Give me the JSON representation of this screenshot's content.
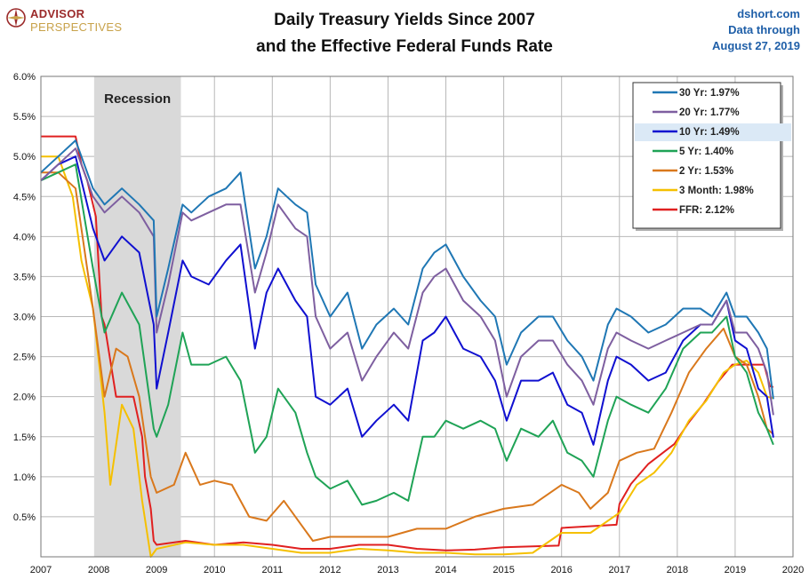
{
  "header": {
    "logo_line1": "ADVISOR",
    "logo_line2": "PERSPECTIVES",
    "title_line1": "Daily Treasury Yields Since 2007",
    "title_line2": "and the Effective Federal Funds Rate",
    "source_line1": "dshort.com",
    "source_line2": "Data through",
    "source_line3": "August 27, 2019"
  },
  "colors": {
    "grid": "#b8b8b8",
    "recession": "#d9d9d9",
    "legend_highlight": "#dbe9f6"
  },
  "chart_data": {
    "type": "line",
    "title": "Daily Treasury Yields Since 2007 and the Effective Federal Funds Rate",
    "xlabel": "",
    "ylabel": "",
    "xlim": [
      2007,
      2020
    ],
    "ylim": [
      0,
      6
    ],
    "x_ticks": [
      "2007",
      "2008",
      "2009",
      "2010",
      "2011",
      "2012",
      "2013",
      "2014",
      "2015",
      "2016",
      "2017",
      "2018",
      "2019",
      "2020"
    ],
    "y_ticks": [
      "6.0%",
      "5.5%",
      "5.0%",
      "4.5%",
      "4.0%",
      "3.5%",
      "3.0%",
      "2.5%",
      "2.0%",
      "1.5%",
      "1.0%",
      "0.5%"
    ],
    "grid": true,
    "legend_position": "top-right",
    "annotations": [
      {
        "text": "Recession",
        "start": 2007.92,
        "end": 2009.42
      }
    ],
    "series": [
      {
        "name": "30 Yr: 1.97%",
        "color": "#1f77b4",
        "highlight": false,
        "x": [
          2007.0,
          2007.3,
          2007.6,
          2007.9,
          2008.1,
          2008.4,
          2008.7,
          2008.95,
          2009.0,
          2009.2,
          2009.45,
          2009.6,
          2009.9,
          2010.2,
          2010.45,
          2010.7,
          2010.9,
          2011.1,
          2011.4,
          2011.6,
          2011.75,
          2012.0,
          2012.3,
          2012.55,
          2012.8,
          2013.1,
          2013.35,
          2013.6,
          2013.8,
          2014.0,
          2014.3,
          2014.6,
          2014.85,
          2015.05,
          2015.3,
          2015.6,
          2015.85,
          2016.1,
          2016.35,
          2016.55,
          2016.8,
          2016.95,
          2017.2,
          2017.5,
          2017.8,
          2018.1,
          2018.4,
          2018.6,
          2018.85,
          2019.0,
          2019.2,
          2019.4,
          2019.55,
          2019.66
        ],
        "y": [
          4.8,
          5.0,
          5.2,
          4.6,
          4.4,
          4.6,
          4.4,
          4.2,
          3.0,
          3.6,
          4.4,
          4.3,
          4.5,
          4.6,
          4.8,
          3.6,
          4.0,
          4.6,
          4.4,
          4.3,
          3.4,
          3.0,
          3.3,
          2.6,
          2.9,
          3.1,
          2.9,
          3.6,
          3.8,
          3.9,
          3.5,
          3.2,
          3.0,
          2.4,
          2.8,
          3.0,
          3.0,
          2.7,
          2.5,
          2.2,
          2.9,
          3.1,
          3.0,
          2.8,
          2.9,
          3.1,
          3.1,
          3.0,
          3.3,
          3.0,
          3.0,
          2.8,
          2.6,
          1.97
        ]
      },
      {
        "name": "20 Yr: 1.77%",
        "color": "#7e5fa0",
        "highlight": false,
        "x": [
          2007.0,
          2007.3,
          2007.6,
          2007.9,
          2008.1,
          2008.4,
          2008.7,
          2008.95,
          2009.0,
          2009.2,
          2009.45,
          2009.6,
          2009.9,
          2010.2,
          2010.45,
          2010.7,
          2010.9,
          2011.1,
          2011.4,
          2011.6,
          2011.75,
          2012.0,
          2012.3,
          2012.55,
          2012.8,
          2013.1,
          2013.35,
          2013.6,
          2013.8,
          2014.0,
          2014.3,
          2014.6,
          2014.85,
          2015.05,
          2015.3,
          2015.6,
          2015.85,
          2016.1,
          2016.35,
          2016.55,
          2016.8,
          2016.95,
          2017.2,
          2017.5,
          2017.8,
          2018.1,
          2018.4,
          2018.6,
          2018.85,
          2019.0,
          2019.2,
          2019.4,
          2019.55,
          2019.66
        ],
        "y": [
          4.7,
          4.9,
          5.1,
          4.5,
          4.3,
          4.5,
          4.3,
          4.0,
          2.8,
          3.4,
          4.3,
          4.2,
          4.3,
          4.4,
          4.4,
          3.3,
          3.8,
          4.4,
          4.1,
          4.0,
          3.0,
          2.6,
          2.8,
          2.2,
          2.5,
          2.8,
          2.6,
          3.3,
          3.5,
          3.6,
          3.2,
          3.0,
          2.7,
          2.0,
          2.5,
          2.7,
          2.7,
          2.4,
          2.2,
          1.9,
          2.6,
          2.8,
          2.7,
          2.6,
          2.7,
          2.8,
          2.9,
          2.9,
          3.2,
          2.8,
          2.8,
          2.6,
          2.3,
          1.77
        ]
      },
      {
        "name": "10 Yr: 1.49%",
        "color": "#1010d0",
        "highlight": true,
        "x": [
          2007.0,
          2007.3,
          2007.6,
          2007.9,
          2008.1,
          2008.4,
          2008.7,
          2008.95,
          2009.0,
          2009.2,
          2009.45,
          2009.6,
          2009.9,
          2010.2,
          2010.45,
          2010.7,
          2010.9,
          2011.1,
          2011.4,
          2011.6,
          2011.75,
          2012.0,
          2012.3,
          2012.55,
          2012.8,
          2013.1,
          2013.35,
          2013.6,
          2013.8,
          2014.0,
          2014.3,
          2014.6,
          2014.85,
          2015.05,
          2015.3,
          2015.6,
          2015.85,
          2016.1,
          2016.35,
          2016.55,
          2016.8,
          2016.95,
          2017.2,
          2017.5,
          2017.8,
          2018.1,
          2018.4,
          2018.6,
          2018.85,
          2019.0,
          2019.2,
          2019.4,
          2019.55,
          2019.66
        ],
        "y": [
          4.7,
          4.9,
          5.0,
          4.1,
          3.7,
          4.0,
          3.8,
          2.9,
          2.1,
          2.8,
          3.7,
          3.5,
          3.4,
          3.7,
          3.9,
          2.6,
          3.3,
          3.6,
          3.2,
          3.0,
          2.0,
          1.9,
          2.1,
          1.5,
          1.7,
          1.9,
          1.7,
          2.7,
          2.8,
          3.0,
          2.6,
          2.5,
          2.2,
          1.7,
          2.2,
          2.2,
          2.3,
          1.9,
          1.8,
          1.4,
          2.2,
          2.5,
          2.4,
          2.2,
          2.3,
          2.7,
          2.9,
          2.9,
          3.2,
          2.7,
          2.6,
          2.1,
          2.0,
          1.49
        ]
      },
      {
        "name": "5 Yr: 1.40%",
        "color": "#1fa356",
        "highlight": false,
        "x": [
          2007.0,
          2007.3,
          2007.6,
          2007.9,
          2008.1,
          2008.4,
          2008.7,
          2008.95,
          2009.0,
          2009.2,
          2009.45,
          2009.6,
          2009.9,
          2010.2,
          2010.45,
          2010.7,
          2010.9,
          2011.1,
          2011.4,
          2011.6,
          2011.75,
          2012.0,
          2012.3,
          2012.55,
          2012.8,
          2013.1,
          2013.35,
          2013.6,
          2013.8,
          2014.0,
          2014.3,
          2014.6,
          2014.85,
          2015.05,
          2015.3,
          2015.6,
          2015.85,
          2016.1,
          2016.35,
          2016.55,
          2016.8,
          2016.95,
          2017.2,
          2017.5,
          2017.8,
          2018.1,
          2018.4,
          2018.6,
          2018.85,
          2019.0,
          2019.2,
          2019.4,
          2019.55,
          2019.66
        ],
        "y": [
          4.7,
          4.8,
          4.9,
          3.6,
          2.8,
          3.3,
          2.9,
          1.6,
          1.5,
          1.9,
          2.8,
          2.4,
          2.4,
          2.5,
          2.2,
          1.3,
          1.5,
          2.1,
          1.8,
          1.3,
          1.0,
          0.85,
          0.95,
          0.65,
          0.7,
          0.8,
          0.7,
          1.5,
          1.5,
          1.7,
          1.6,
          1.7,
          1.6,
          1.2,
          1.6,
          1.5,
          1.7,
          1.3,
          1.2,
          1.0,
          1.7,
          2.0,
          1.9,
          1.8,
          2.1,
          2.6,
          2.8,
          2.8,
          3.0,
          2.5,
          2.3,
          1.8,
          1.6,
          1.4
        ]
      },
      {
        "name": "2 Yr: 1.53%",
        "color": "#d9781c",
        "highlight": false,
        "x": [
          2007.0,
          2007.3,
          2007.6,
          2007.9,
          2008.1,
          2008.3,
          2008.5,
          2008.7,
          2008.9,
          2009.0,
          2009.3,
          2009.5,
          2009.75,
          2010.0,
          2010.3,
          2010.6,
          2010.9,
          2011.2,
          2011.5,
          2011.7,
          2012.0,
          2012.5,
          2013.0,
          2013.5,
          2014.0,
          2014.5,
          2015.0,
          2015.5,
          2016.0,
          2016.3,
          2016.5,
          2016.8,
          2017.0,
          2017.3,
          2017.6,
          2017.9,
          2018.2,
          2018.5,
          2018.8,
          2019.0,
          2019.2,
          2019.4,
          2019.55,
          2019.66
        ],
        "y": [
          4.8,
          4.8,
          4.6,
          3.1,
          2.0,
          2.6,
          2.5,
          2.0,
          1.0,
          0.8,
          0.9,
          1.3,
          0.9,
          0.95,
          0.9,
          0.5,
          0.45,
          0.7,
          0.4,
          0.2,
          0.25,
          0.25,
          0.25,
          0.35,
          0.35,
          0.5,
          0.6,
          0.65,
          0.9,
          0.8,
          0.6,
          0.8,
          1.2,
          1.3,
          1.35,
          1.8,
          2.3,
          2.6,
          2.85,
          2.5,
          2.4,
          2.0,
          1.6,
          1.53
        ]
      },
      {
        "name": "3 Month: 1.98%",
        "color": "#f5c000",
        "highlight": false,
        "x": [
          2007.0,
          2007.3,
          2007.55,
          2007.7,
          2007.9,
          2008.1,
          2008.2,
          2008.4,
          2008.6,
          2008.75,
          2008.9,
          2009.0,
          2009.5,
          2010.0,
          2010.5,
          2011.0,
          2011.5,
          2012.0,
          2012.5,
          2013.0,
          2013.5,
          2014.0,
          2014.5,
          2015.0,
          2015.5,
          2015.9,
          2016.0,
          2016.5,
          2016.9,
          2017.0,
          2017.3,
          2017.6,
          2017.9,
          2018.2,
          2018.5,
          2018.8,
          2019.0,
          2019.2,
          2019.4,
          2019.55,
          2019.66
        ],
        "y": [
          5.0,
          5.0,
          4.5,
          3.7,
          3.1,
          1.8,
          0.9,
          1.9,
          1.6,
          0.7,
          0.0,
          0.1,
          0.18,
          0.15,
          0.15,
          0.1,
          0.05,
          0.05,
          0.1,
          0.08,
          0.05,
          0.05,
          0.03,
          0.03,
          0.05,
          0.25,
          0.3,
          0.3,
          0.5,
          0.55,
          0.9,
          1.05,
          1.3,
          1.7,
          1.95,
          2.3,
          2.4,
          2.45,
          2.3,
          2.0,
          1.98
        ]
      },
      {
        "name": "FFR: 2.12%",
        "color": "#e02020",
        "highlight": false,
        "x": [
          2007.0,
          2007.6,
          2007.7,
          2007.8,
          2007.95,
          2008.05,
          2008.1,
          2008.3,
          2008.6,
          2008.75,
          2008.8,
          2008.9,
          2008.95,
          2009.0,
          2009.5,
          2010.0,
          2010.5,
          2011.0,
          2011.5,
          2012.0,
          2012.5,
          2013.0,
          2013.5,
          2014.0,
          2014.5,
          2015.0,
          2015.5,
          2015.95,
          2016.0,
          2016.95,
          2017.0,
          2017.2,
          2017.5,
          2017.95,
          2018.2,
          2018.45,
          2018.7,
          2018.95,
          2019.0,
          2019.5,
          2019.6,
          2019.66
        ],
        "y": [
          5.25,
          5.25,
          4.9,
          4.7,
          4.25,
          3.0,
          2.9,
          2.0,
          2.0,
          1.5,
          1.0,
          0.6,
          0.2,
          0.15,
          0.2,
          0.15,
          0.18,
          0.15,
          0.1,
          0.1,
          0.15,
          0.15,
          0.1,
          0.08,
          0.09,
          0.12,
          0.13,
          0.14,
          0.36,
          0.4,
          0.66,
          0.91,
          1.16,
          1.41,
          1.68,
          1.91,
          2.18,
          2.4,
          2.4,
          2.4,
          2.13,
          2.12
        ]
      }
    ]
  }
}
